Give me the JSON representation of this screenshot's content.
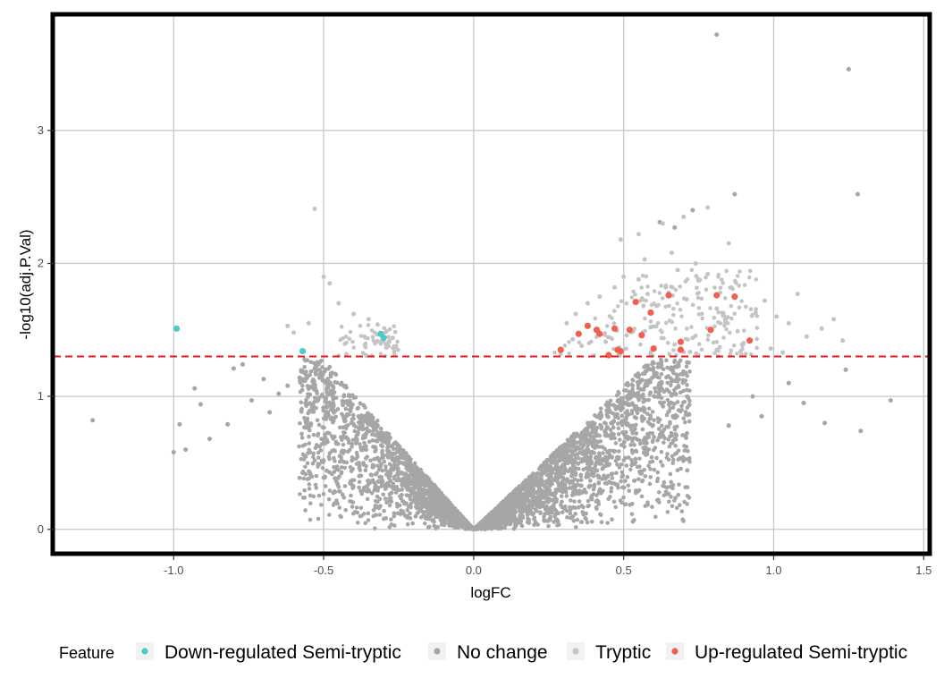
{
  "chart_data": {
    "type": "scatter",
    "title": "",
    "xlabel": "logFC",
    "ylabel": "-log10(adj.P.Val)",
    "xlim": [
      -1.4,
      1.52
    ],
    "ylim": [
      -0.19,
      3.88
    ],
    "x_ticks": [
      -1.0,
      -0.5,
      0.0,
      0.5,
      1.0,
      1.5
    ],
    "x_tick_labels": [
      "-1.0",
      "-0.5",
      "0.0",
      "0.5",
      "1.0",
      "1.5"
    ],
    "y_ticks": [
      0,
      1,
      2,
      3
    ],
    "y_tick_labels": [
      "0",
      "1",
      "2",
      "3"
    ],
    "grid": true,
    "threshold_line": {
      "y": 1.3,
      "color": "#e41a1c",
      "style": "dashed"
    },
    "legend": {
      "title": "Feature",
      "position": "bottom",
      "entries": [
        {
          "label": "Down-regulated Semi-tryptic",
          "color": "#4dc9c9"
        },
        {
          "label": "No change",
          "color": "#a6a6a6"
        },
        {
          "label": "Tryptic",
          "color": "#c4c4c4"
        },
        {
          "label": "Up-regulated Semi-tryptic",
          "color": "#f0604d"
        }
      ]
    },
    "series": [
      {
        "name": "Down-regulated Semi-tryptic",
        "color": "#4dc9c9",
        "x": [
          -0.99,
          -0.57,
          -0.31,
          -0.3
        ],
        "y": [
          1.51,
          1.34,
          1.47,
          1.44
        ]
      },
      {
        "name": "Up-regulated Semi-tryptic",
        "color": "#f0604d",
        "x": [
          0.29,
          0.35,
          0.38,
          0.41,
          0.42,
          0.45,
          0.47,
          0.48,
          0.49,
          0.52,
          0.54,
          0.56,
          0.59,
          0.6,
          0.65,
          0.69,
          0.69,
          0.79,
          0.81,
          0.87,
          0.92
        ],
        "y": [
          1.35,
          1.47,
          1.53,
          1.5,
          1.47,
          1.31,
          1.51,
          1.35,
          1.34,
          1.5,
          1.71,
          1.46,
          1.63,
          1.36,
          1.76,
          1.41,
          1.35,
          1.5,
          1.76,
          1.75,
          1.42
        ]
      },
      {
        "name": "Tryptic",
        "color": "#c4c4c4",
        "x": [
          -0.53,
          -0.55,
          -0.5,
          -0.48,
          -0.45,
          -0.4,
          -0.35,
          -0.32,
          -0.29,
          -0.27,
          -0.6,
          -0.62,
          0.31,
          0.34,
          0.38,
          0.42,
          0.47,
          0.5,
          0.55,
          0.58,
          0.61,
          0.64,
          0.68,
          0.71,
          0.75,
          0.78,
          0.81,
          0.84,
          0.88,
          0.94,
          0.97,
          1.01,
          1.05,
          1.08,
          1.11,
          1.16,
          1.2,
          1.23,
          0.49,
          0.55,
          0.63,
          0.7,
          0.78,
          0.85,
          0.57,
          0.66,
          0.74,
          0.33,
          0.36,
          0.44,
          0.51,
          0.59,
          0.67,
          0.73,
          0.82,
          0.9,
          0.99,
          1.03
        ],
        "y": [
          2.41,
          1.55,
          1.9,
          1.85,
          1.7,
          1.62,
          1.58,
          1.54,
          1.49,
          1.44,
          1.48,
          1.53,
          1.55,
          1.62,
          1.7,
          1.75,
          1.82,
          1.9,
          1.88,
          1.77,
          1.68,
          1.82,
          1.95,
          1.73,
          1.87,
          1.92,
          1.66,
          1.58,
          1.49,
          1.63,
          1.72,
          1.6,
          1.55,
          1.77,
          1.45,
          1.51,
          1.58,
          1.42,
          2.18,
          2.22,
          2.3,
          2.35,
          2.42,
          2.15,
          2.03,
          2.08,
          2.0,
          1.43,
          1.38,
          1.41,
          1.46,
          1.52,
          1.39,
          1.44,
          1.37,
          1.4,
          1.36,
          1.33
        ]
      },
      {
        "name": "No change",
        "color": "#a6a6a6",
        "x": [
          -1.27,
          -1.0,
          -0.98,
          -0.96,
          -0.93,
          -0.91,
          -0.88,
          -0.82,
          -0.8,
          -0.77,
          -0.74,
          -0.7,
          -0.68,
          -0.65,
          -0.62,
          -0.58,
          0.81,
          1.25,
          1.28,
          0.87,
          0.73,
          0.67,
          0.62,
          1.29,
          1.39,
          1.24,
          1.17,
          1.1,
          1.05,
          0.96,
          0.93,
          0.85
        ],
        "y": [
          0.82,
          0.58,
          0.79,
          0.6,
          1.06,
          0.94,
          0.68,
          0.79,
          1.21,
          1.24,
          0.97,
          1.13,
          0.88,
          1.02,
          1.08,
          1.14,
          3.72,
          3.46,
          2.52,
          2.52,
          2.4,
          2.27,
          2.31,
          0.74,
          0.97,
          1.2,
          0.8,
          0.95,
          1.1,
          0.85,
          1.0,
          0.78
        ]
      }
    ]
  }
}
